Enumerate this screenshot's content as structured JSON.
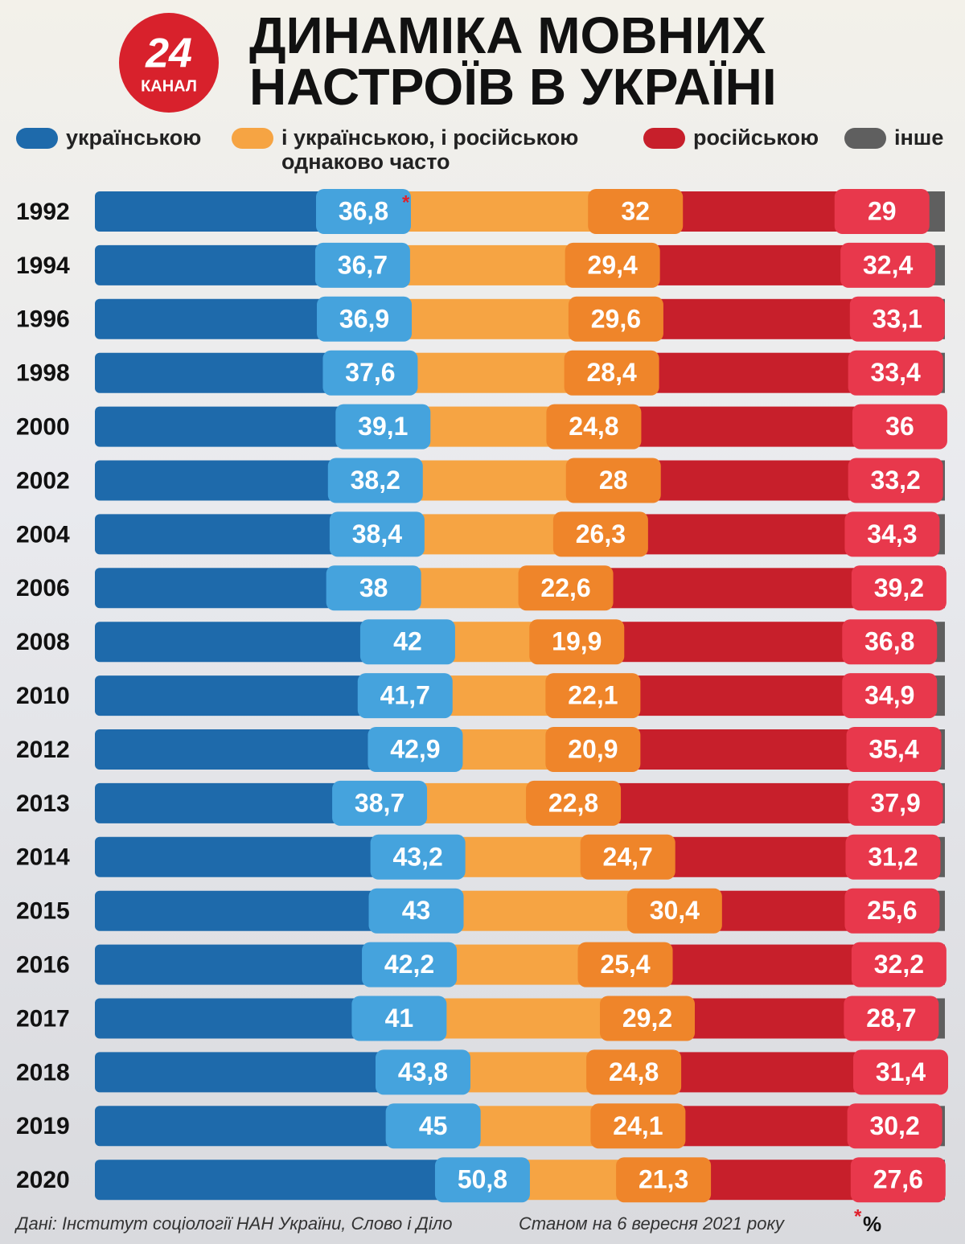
{
  "chart_data": {
    "type": "stacked_bar_horizontal",
    "title_lines": [
      "ДИНАМІКА МОВНИХ",
      "НАСТРОЇВ В УКРАЇНІ"
    ],
    "logo": {
      "number": "24",
      "name": "КАНАЛ"
    },
    "categories": [
      "1992",
      "1994",
      "1996",
      "1998",
      "2000",
      "2002",
      "2004",
      "2006",
      "2008",
      "2010",
      "2012",
      "2013",
      "2014",
      "2015",
      "2016",
      "2017",
      "2018",
      "2019",
      "2020"
    ],
    "series": [
      {
        "name": "українською",
        "color": "#1e6aab",
        "label_color": "#45a3dd",
        "values": [
          36.8,
          36.7,
          36.9,
          37.6,
          39.1,
          38.2,
          38.4,
          38,
          42,
          41.7,
          42.9,
          38.7,
          43.2,
          43,
          42.2,
          41,
          43.8,
          45,
          50.8
        ],
        "value_labels": [
          "36,8",
          "36,7",
          "36,9",
          "37,6",
          "39,1",
          "38,2",
          "38,4",
          "38",
          "42",
          "41,7",
          "42,9",
          "38,7",
          "43,2",
          "43",
          "42,2",
          "41",
          "43,8",
          "45",
          "50,8"
        ]
      },
      {
        "name": "і українською, і російською однаково часто",
        "color": "#f6a443",
        "label_color": "#ef852a",
        "values": [
          32,
          29.4,
          29.6,
          28.4,
          24.8,
          28,
          26.3,
          22.6,
          19.9,
          22.1,
          20.9,
          22.8,
          24.7,
          30.4,
          25.4,
          29.2,
          24.8,
          24.1,
          21.3
        ],
        "value_labels": [
          "32",
          "29,4",
          "29,6",
          "28,4",
          "24,8",
          "28",
          "26,3",
          "22,6",
          "19,9",
          "22,1",
          "20,9",
          "22,8",
          "24,7",
          "30,4",
          "25,4",
          "29,2",
          "24,8",
          "24,1",
          "21,3"
        ]
      },
      {
        "name": "російською",
        "color": "#c71f2b",
        "label_color": "#e8384c",
        "values": [
          29,
          32.4,
          33.1,
          33.4,
          36,
          33.2,
          34.3,
          39.2,
          36.8,
          34.9,
          35.4,
          37.9,
          31.2,
          25.6,
          32.2,
          28.7,
          31.4,
          30.2,
          27.6
        ],
        "value_labels": [
          "29",
          "32,4",
          "33,1",
          "33,4",
          "36",
          "33,2",
          "34,3",
          "39,2",
          "36,8",
          "34,9",
          "35,4",
          "37,9",
          "31,2",
          "25,6",
          "32,2",
          "28,7",
          "31,4",
          "30,2",
          "27,6"
        ]
      },
      {
        "name": "інше",
        "color": "#5f5f5f",
        "values": [
          2.2,
          1.5,
          0.4,
          0.6,
          0.1,
          0.6,
          1.0,
          0.2,
          1.3,
          1.3,
          0.8,
          0.6,
          0.9,
          1.0,
          0.2,
          1.1,
          0,
          0.7,
          0.3
        ]
      }
    ],
    "xlim": [
      0,
      100
    ],
    "footnote_mark": "*",
    "unit": "%",
    "source": "Дані: Інститут соціології НАН України, Слово і Діло",
    "date_note": "Станом на 6 вересня 2021 року"
  }
}
